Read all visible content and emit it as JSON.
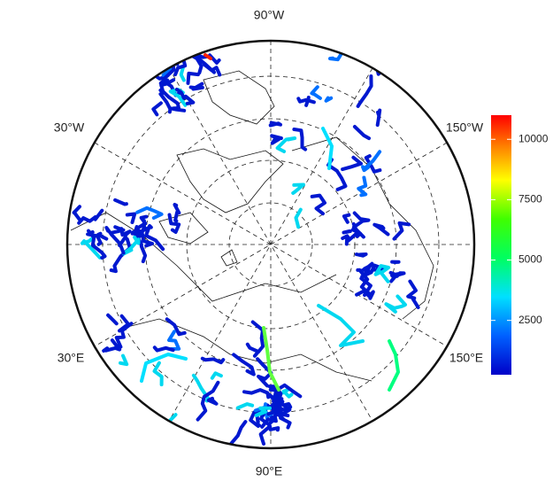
{
  "map": {
    "longitude_labels": [
      "90°W",
      "30°W",
      "150°W",
      "30°E",
      "150°E",
      "90°E"
    ],
    "colorbar": {
      "range": [
        250,
        11000
      ],
      "ticks": [
        2500,
        5000,
        7500,
        10000
      ]
    }
  }
}
